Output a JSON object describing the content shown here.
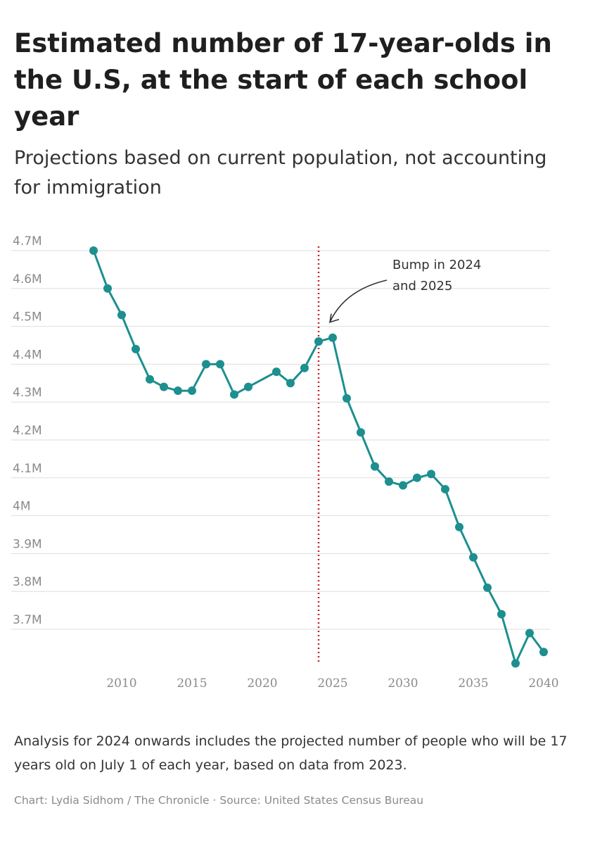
{
  "title": "Estimated number of 17-year-olds in the U.S, at the start of each school year",
  "subtitle": "Projections based on current population, not accounting for immigration",
  "note": "Analysis for 2024 onwards includes the projected number of people who will be 17 years old on July 1 of each year, based on data from 2023.",
  "credit": "Chart: Lydia Sidhom / The Chronicle · Source: United States Census Bureau",
  "colors": {
    "line": "#1d8f8f",
    "marker": "#1d8f8f",
    "reference": "#c0262d",
    "grid": "#dddddd"
  },
  "chart_data": {
    "type": "line",
    "title": "Estimated number of 17-year-olds in the U.S, at the start of each school year",
    "xlabel": "",
    "ylabel": "",
    "ylim": [
      3.6,
      4.72
    ],
    "xlim": [
      2007,
      2041
    ],
    "y_ticks": [
      4.7,
      4.6,
      4.5,
      4.4,
      4.3,
      4.2,
      4.1,
      4.0,
      3.9,
      3.8,
      3.7
    ],
    "y_tick_labels": [
      "4.7M",
      "4.6M",
      "4.5M",
      "4.4M",
      "4.3M",
      "4.2M",
      "4.1M",
      "4M",
      "3.9M",
      "3.8M",
      "3.7M"
    ],
    "x_ticks": [
      2010,
      2015,
      2020,
      2025,
      2030,
      2035,
      2040
    ],
    "x_tick_labels": [
      "2010",
      "2015",
      "2020",
      "2025",
      "2030",
      "2035",
      "2040"
    ],
    "grid": true,
    "series": [
      {
        "name": "17-year-olds",
        "x": [
          2008,
          2009,
          2010,
          2011,
          2012,
          2013,
          2014,
          2015,
          2016,
          2017,
          2018,
          2019,
          2021,
          2022,
          2023,
          2024,
          2025,
          2026,
          2027,
          2028,
          2029,
          2030,
          2031,
          2032,
          2033,
          2034,
          2035,
          2036,
          2037,
          2038,
          2039,
          2040
        ],
        "values": [
          4.7,
          4.6,
          4.53,
          4.44,
          4.36,
          4.34,
          4.33,
          4.33,
          4.4,
          4.4,
          4.32,
          4.34,
          4.38,
          4.35,
          4.39,
          4.46,
          4.47,
          4.31,
          4.22,
          4.13,
          4.09,
          4.08,
          4.1,
          4.11,
          4.07,
          3.97,
          3.89,
          3.81,
          3.74,
          3.61,
          3.69,
          3.64
        ]
      }
    ],
    "reference_line": {
      "x": 2024,
      "style": "dotted"
    },
    "annotations": [
      {
        "text_lines": [
          "Bump in 2024",
          "and 2025"
        ],
        "target": [
          2024,
          4.47
        ]
      }
    ]
  }
}
